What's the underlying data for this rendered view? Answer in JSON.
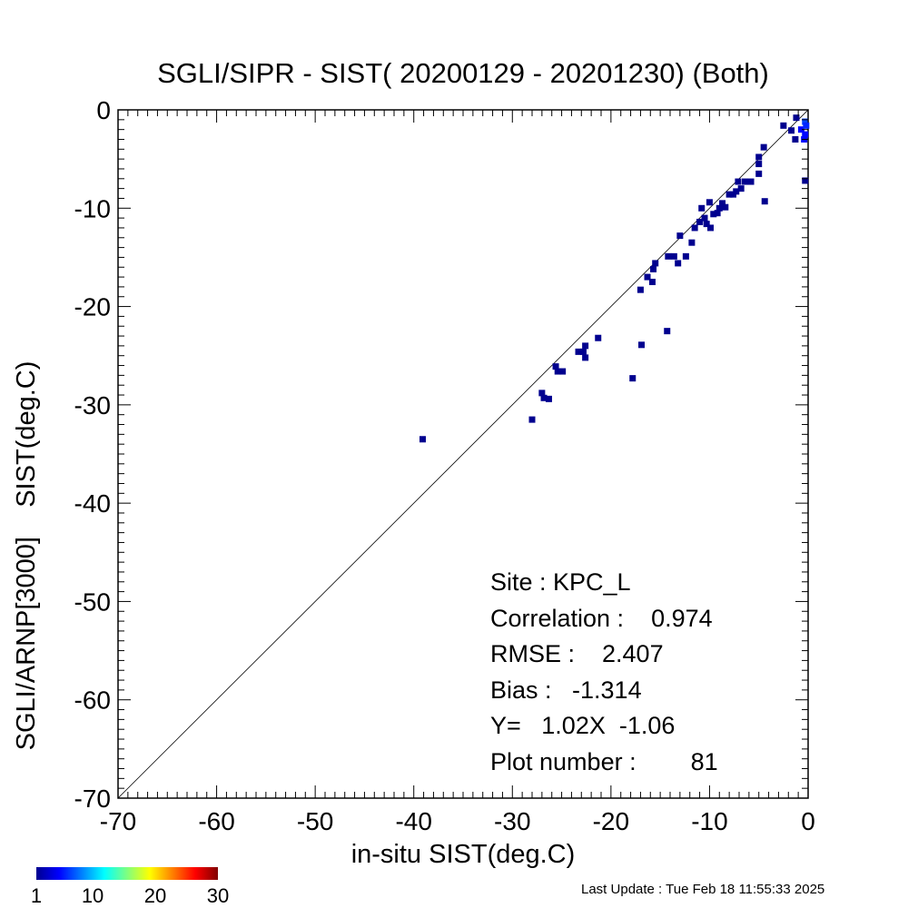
{
  "chart_data": {
    "type": "scatter",
    "title": "SGLI/SIPR - SIST( 20200129 - 20201230) (Both)",
    "xlabel": "in-situ SIST(deg.C)",
    "ylabel": "SGLI/ARNP[3000]    SIST(deg.C)",
    "xlim": [
      -70,
      0
    ],
    "ylim": [
      -70,
      0
    ],
    "xticks": [
      "-70",
      "-60",
      "-50",
      "-40",
      "-30",
      "-20",
      "-10",
      "0"
    ],
    "yticks": [
      "0",
      "-10",
      "-20",
      "-30",
      "-40",
      "-50",
      "-60",
      "-70"
    ],
    "reference_line": "1:1",
    "grid": false,
    "points": [
      {
        "x": -39.1,
        "y": -33.5,
        "count": 1
      },
      {
        "x": -28.0,
        "y": -31.5,
        "count": 1
      },
      {
        "x": -27.0,
        "y": -28.8,
        "count": 1
      },
      {
        "x": -26.8,
        "y": -29.3,
        "count": 1
      },
      {
        "x": -26.3,
        "y": -29.4,
        "count": 1
      },
      {
        "x": -25.6,
        "y": -26.1,
        "count": 1
      },
      {
        "x": -25.4,
        "y": -26.6,
        "count": 1
      },
      {
        "x": -24.9,
        "y": -26.6,
        "count": 1
      },
      {
        "x": -23.3,
        "y": -24.6,
        "count": 1
      },
      {
        "x": -22.8,
        "y": -24.6,
        "count": 1
      },
      {
        "x": -22.6,
        "y": -24.0,
        "count": 1
      },
      {
        "x": -22.6,
        "y": -25.2,
        "count": 1
      },
      {
        "x": -21.3,
        "y": -23.2,
        "count": 1
      },
      {
        "x": -17.8,
        "y": -27.3,
        "count": 1
      },
      {
        "x": -17.0,
        "y": -18.3,
        "count": 1
      },
      {
        "x": -16.9,
        "y": -23.9,
        "count": 1
      },
      {
        "x": -16.3,
        "y": -17.0,
        "count": 1
      },
      {
        "x": -15.8,
        "y": -17.5,
        "count": 1
      },
      {
        "x": -15.7,
        "y": -16.2,
        "count": 1
      },
      {
        "x": -15.5,
        "y": -15.6,
        "count": 1
      },
      {
        "x": -14.3,
        "y": -22.5,
        "count": 1
      },
      {
        "x": -14.2,
        "y": -14.9,
        "count": 1
      },
      {
        "x": -13.6,
        "y": -14.9,
        "count": 1
      },
      {
        "x": -13.2,
        "y": -15.6,
        "count": 1
      },
      {
        "x": -13.0,
        "y": -12.8,
        "count": 1
      },
      {
        "x": -12.4,
        "y": -14.9,
        "count": 1
      },
      {
        "x": -11.8,
        "y": -13.5,
        "count": 1
      },
      {
        "x": -11.5,
        "y": -12.0,
        "count": 1
      },
      {
        "x": -11.0,
        "y": -11.4,
        "count": 1
      },
      {
        "x": -10.8,
        "y": -10.0,
        "count": 1
      },
      {
        "x": -10.5,
        "y": -11.0,
        "count": 1
      },
      {
        "x": -10.3,
        "y": -11.6,
        "count": 1
      },
      {
        "x": -10.0,
        "y": -9.4,
        "count": 1
      },
      {
        "x": -9.9,
        "y": -12.0,
        "count": 1
      },
      {
        "x": -9.6,
        "y": -10.6,
        "count": 1
      },
      {
        "x": -9.2,
        "y": -10.5,
        "count": 1
      },
      {
        "x": -9.0,
        "y": -10.0,
        "count": 1
      },
      {
        "x": -8.7,
        "y": -9.5,
        "count": 1
      },
      {
        "x": -8.4,
        "y": -9.9,
        "count": 1
      },
      {
        "x": -8.0,
        "y": -8.6,
        "count": 1
      },
      {
        "x": -7.6,
        "y": -8.6,
        "count": 1
      },
      {
        "x": -7.3,
        "y": -8.3,
        "count": 1
      },
      {
        "x": -7.1,
        "y": -7.3,
        "count": 1
      },
      {
        "x": -6.8,
        "y": -8.0,
        "count": 1
      },
      {
        "x": -6.4,
        "y": -7.3,
        "count": 1
      },
      {
        "x": -5.8,
        "y": -7.3,
        "count": 1
      },
      {
        "x": -5.0,
        "y": -6.5,
        "count": 1
      },
      {
        "x": -5.0,
        "y": -4.8,
        "count": 1
      },
      {
        "x": -5.0,
        "y": -5.5,
        "count": 1
      },
      {
        "x": -4.5,
        "y": -3.8,
        "count": 1
      },
      {
        "x": -4.4,
        "y": -9.3,
        "count": 1
      },
      {
        "x": -2.5,
        "y": -1.6,
        "count": 1
      },
      {
        "x": -1.7,
        "y": -2.1,
        "count": 1
      },
      {
        "x": -1.3,
        "y": -3.0,
        "count": 1
      },
      {
        "x": -1.2,
        "y": -0.8,
        "count": 1
      },
      {
        "x": -0.7,
        "y": -2.0,
        "count": 2
      },
      {
        "x": -0.4,
        "y": -3.0,
        "count": 2
      },
      {
        "x": -0.3,
        "y": -1.2,
        "count": 4
      },
      {
        "x": -0.3,
        "y": -7.2,
        "count": 1
      },
      {
        "x": -0.3,
        "y": -2.5,
        "count": 2
      },
      {
        "x": -0.2,
        "y": -1.6,
        "count": 3
      }
    ],
    "colorbar": {
      "colormap": "jet",
      "range": [
        1,
        30
      ],
      "tick_labels": [
        "1",
        "10",
        "20",
        "30"
      ]
    }
  },
  "stats": {
    "site": "Site : KPC_L",
    "correlation": "Correlation :    0.974",
    "rmse": "RMSE :    2.407",
    "bias": "Bias :   -1.314",
    "regression": "Y=   1.02X  -1.06",
    "plot_number": "Plot number :        81"
  },
  "footer": {
    "last_update": "Last Update : Tue Feb 18 11:55:33 2025"
  }
}
